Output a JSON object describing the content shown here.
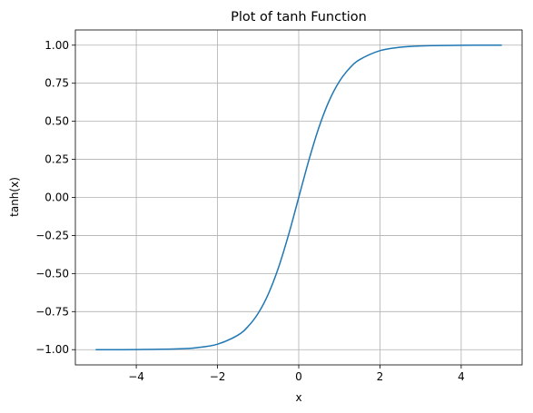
{
  "chart_data": {
    "type": "line",
    "title": "Plot of tanh Function",
    "xlabel": "x",
    "ylabel": "tanh(x)",
    "xlim": [
      -5.5,
      5.5
    ],
    "ylim": [
      -1.1,
      1.1
    ],
    "grid": true,
    "xticks": [
      {
        "value": -4,
        "label": "−4"
      },
      {
        "value": -2,
        "label": "−2"
      },
      {
        "value": 0,
        "label": "0"
      },
      {
        "value": 2,
        "label": "2"
      },
      {
        "value": 4,
        "label": "4"
      }
    ],
    "yticks": [
      {
        "value": -1.0,
        "label": "−1.00"
      },
      {
        "value": -0.75,
        "label": "−0.75"
      },
      {
        "value": -0.5,
        "label": "−0.50"
      },
      {
        "value": -0.25,
        "label": "−0.25"
      },
      {
        "value": 0.0,
        "label": "0.00"
      },
      {
        "value": 0.25,
        "label": "0.25"
      },
      {
        "value": 0.5,
        "label": "0.50"
      },
      {
        "value": 0.75,
        "label": "0.75"
      },
      {
        "value": 1.0,
        "label": "1.00"
      }
    ],
    "series": [
      {
        "color": "#1f77b4",
        "x": [
          -5,
          -4,
          -3,
          -2.5,
          -2,
          -1.5,
          -1.25,
          -1,
          -0.75,
          -0.5,
          -0.25,
          0,
          0.25,
          0.5,
          0.75,
          1,
          1.25,
          1.5,
          2,
          2.5,
          3,
          4,
          5
        ],
        "y": [
          -0.9999,
          -0.9993,
          -0.9951,
          -0.9866,
          -0.964,
          -0.9051,
          -0.8483,
          -0.7616,
          -0.6351,
          -0.4621,
          -0.2449,
          0,
          0.2449,
          0.4621,
          0.6351,
          0.7616,
          0.8483,
          0.9051,
          0.964,
          0.9866,
          0.9951,
          0.9993,
          0.9999
        ]
      }
    ]
  }
}
